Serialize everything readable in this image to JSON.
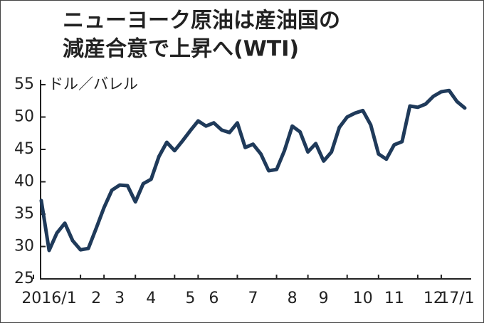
{
  "chart_data": {
    "type": "line",
    "title": [
      "ニューヨーク原油は産油国の",
      "減産合意で上昇へ(WTI)"
    ],
    "y_label": "ドル／バレル",
    "categories": [
      null,
      "2016/1",
      null,
      null,
      null,
      null,
      null,
      "2",
      null,
      null,
      "3",
      null,
      null,
      null,
      "4",
      null,
      null,
      null,
      null,
      "5",
      null,
      null,
      "6",
      null,
      null,
      null,
      null,
      "7",
      null,
      null,
      null,
      null,
      "8",
      null,
      null,
      null,
      "9",
      null,
      null,
      null,
      null,
      "10",
      null,
      null,
      null,
      "11",
      null,
      null,
      null,
      null,
      "12",
      null,
      null,
      "17/1",
      null
    ],
    "series": [
      {
        "name": "WTI",
        "color": "#1f3a5a",
        "values": [
          37.1,
          29.4,
          32.1,
          33.6,
          30.9,
          29.5,
          29.7,
          32.8,
          36.0,
          38.7,
          39.5,
          39.4,
          36.9,
          39.7,
          40.4,
          43.9,
          46.1,
          44.8,
          46.3,
          47.9,
          49.4,
          48.6,
          49.1,
          48.0,
          47.6,
          49.1,
          45.3,
          45.8,
          44.3,
          41.7,
          41.9,
          44.8,
          48.6,
          47.7,
          44.6,
          45.9,
          43.2,
          44.6,
          48.4,
          50.0,
          50.6,
          51.0,
          48.8,
          44.3,
          43.5,
          45.7,
          46.2,
          51.7,
          51.5,
          52.0,
          53.2,
          53.9,
          54.1,
          52.4,
          51.4
        ]
      }
    ],
    "ylim": [
      25,
      55
    ],
    "yticks": [
      25,
      30,
      35,
      40,
      45,
      50,
      55
    ],
    "grid": false
  }
}
